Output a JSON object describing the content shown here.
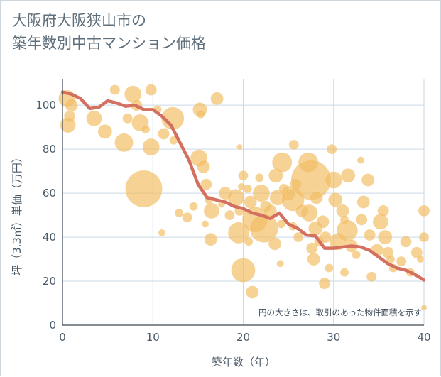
{
  "title_line1": "大阪府大阪狭山市の",
  "title_line2": "築年数別中古マンション価格",
  "chart_data": {
    "type": "scatter",
    "xlabel": "築年数（年）",
    "ylabel": "坪（3.3㎡）単価（万円）",
    "xlim": [
      0,
      40
    ],
    "ylim": [
      0,
      112
    ],
    "xticks": [
      0,
      10,
      20,
      30,
      40
    ],
    "yticks": [
      0,
      20,
      40,
      60,
      80,
      100
    ],
    "grid": true,
    "note": "円の大きさは、取引のあった物件面積を示す",
    "colors": {
      "bubble": "#f2bd63",
      "line": "#d4705f",
      "grid": "#c9d9e6",
      "axis": "#3f4a55"
    },
    "bubbles": [
      {
        "x": 0.5,
        "y": 103,
        "s": 12
      },
      {
        "x": 1,
        "y": 100,
        "s": 9
      },
      {
        "x": 0.8,
        "y": 95,
        "s": 8
      },
      {
        "x": 0.6,
        "y": 91,
        "s": 11
      },
      {
        "x": 3.5,
        "y": 94,
        "s": 11
      },
      {
        "x": 4.7,
        "y": 88,
        "s": 10
      },
      {
        "x": 5.8,
        "y": 107,
        "s": 7
      },
      {
        "x": 7.2,
        "y": 94,
        "s": 7
      },
      {
        "x": 6.8,
        "y": 83,
        "s": 13
      },
      {
        "x": 7.8,
        "y": 105,
        "s": 12
      },
      {
        "x": 8.2,
        "y": 100,
        "s": 8
      },
      {
        "x": 8.6,
        "y": 92,
        "s": 12
      },
      {
        "x": 9.2,
        "y": 89,
        "s": 6
      },
      {
        "x": 9.8,
        "y": 107,
        "s": 8
      },
      {
        "x": 9.8,
        "y": 81,
        "s": 12
      },
      {
        "x": 9,
        "y": 62,
        "s": 26
      },
      {
        "x": 10.5,
        "y": 98,
        "s": 6
      },
      {
        "x": 11.2,
        "y": 87,
        "s": 8
      },
      {
        "x": 12.2,
        "y": 94,
        "s": 16
      },
      {
        "x": 12.3,
        "y": 84,
        "s": 6
      },
      {
        "x": 11,
        "y": 42,
        "s": 5
      },
      {
        "x": 12.9,
        "y": 51,
        "s": 6
      },
      {
        "x": 13.8,
        "y": 49,
        "s": 7
      },
      {
        "x": 14.5,
        "y": 54,
        "s": 6
      },
      {
        "x": 15.2,
        "y": 98,
        "s": 10
      },
      {
        "x": 15.3,
        "y": 96,
        "s": 6
      },
      {
        "x": 17.1,
        "y": 103,
        "s": 9
      },
      {
        "x": 15.1,
        "y": 76,
        "s": 12
      },
      {
        "x": 15.6,
        "y": 72,
        "s": 9
      },
      {
        "x": 15.9,
        "y": 64,
        "s": 8
      },
      {
        "x": 16.2,
        "y": 57,
        "s": 6
      },
      {
        "x": 16.5,
        "y": 52,
        "s": 11
      },
      {
        "x": 15.8,
        "y": 46,
        "s": 5
      },
      {
        "x": 16.4,
        "y": 39,
        "s": 9
      },
      {
        "x": 17.6,
        "y": 55,
        "s": 5
      },
      {
        "x": 18,
        "y": 60,
        "s": 9
      },
      {
        "x": 18.5,
        "y": 50,
        "s": 7
      },
      {
        "x": 19.2,
        "y": 58,
        "s": 12
      },
      {
        "x": 19.6,
        "y": 81,
        "s": 4
      },
      {
        "x": 19.8,
        "y": 63,
        "s": 5
      },
      {
        "x": 19.6,
        "y": 52,
        "s": 7
      },
      {
        "x": 19.5,
        "y": 42,
        "s": 15
      },
      {
        "x": 20,
        "y": 68,
        "s": 7
      },
      {
        "x": 20.5,
        "y": 62,
        "s": 6
      },
      {
        "x": 20.8,
        "y": 56,
        "s": 9
      },
      {
        "x": 21.3,
        "y": 48,
        "s": 18
      },
      {
        "x": 20.6,
        "y": 38,
        "s": 6
      },
      {
        "x": 20,
        "y": 25,
        "s": 17
      },
      {
        "x": 21,
        "y": 15,
        "s": 9
      },
      {
        "x": 21.8,
        "y": 67,
        "s": 6
      },
      {
        "x": 22,
        "y": 60,
        "s": 12
      },
      {
        "x": 22.5,
        "y": 54,
        "s": 8
      },
      {
        "x": 22.3,
        "y": 44,
        "s": 20
      },
      {
        "x": 23,
        "y": 52,
        "s": 9
      },
      {
        "x": 23.6,
        "y": 68,
        "s": 10
      },
      {
        "x": 23.8,
        "y": 58,
        "s": 11
      },
      {
        "x": 23.5,
        "y": 37,
        "s": 9
      },
      {
        "x": 24.1,
        "y": 28,
        "s": 5
      },
      {
        "x": 24.2,
        "y": 46,
        "s": 6
      },
      {
        "x": 24.5,
        "y": 62,
        "s": 7
      },
      {
        "x": 24.3,
        "y": 74,
        "s": 14
      },
      {
        "x": 25,
        "y": 60,
        "s": 10
      },
      {
        "x": 25.5,
        "y": 57,
        "s": 16
      },
      {
        "x": 25.8,
        "y": 64,
        "s": 8
      },
      {
        "x": 25.6,
        "y": 82,
        "s": 7
      },
      {
        "x": 25.5,
        "y": 45,
        "s": 6
      },
      {
        "x": 26.1,
        "y": 40,
        "s": 7
      },
      {
        "x": 26.5,
        "y": 52,
        "s": 9
      },
      {
        "x": 27.2,
        "y": 74,
        "s": 14
      },
      {
        "x": 27.5,
        "y": 66,
        "s": 28
      },
      {
        "x": 27.3,
        "y": 51,
        "s": 12
      },
      {
        "x": 27.6,
        "y": 35,
        "s": 8
      },
      {
        "x": 27.8,
        "y": 30,
        "s": 9
      },
      {
        "x": 28,
        "y": 44,
        "s": 10
      },
      {
        "x": 28.1,
        "y": 58,
        "s": 9
      },
      {
        "x": 28.4,
        "y": 38,
        "s": 7
      },
      {
        "x": 28.8,
        "y": 47,
        "s": 9
      },
      {
        "x": 29.1,
        "y": 40,
        "s": 8
      },
      {
        "x": 29,
        "y": 19,
        "s": 8
      },
      {
        "x": 29.5,
        "y": 26,
        "s": 6
      },
      {
        "x": 29.8,
        "y": 80,
        "s": 7
      },
      {
        "x": 30,
        "y": 66,
        "s": 12
      },
      {
        "x": 30.2,
        "y": 57,
        "s": 10
      },
      {
        "x": 30.5,
        "y": 38,
        "s": 12
      },
      {
        "x": 31,
        "y": 52,
        "s": 9
      },
      {
        "x": 31.2,
        "y": 48,
        "s": 6
      },
      {
        "x": 31.5,
        "y": 43,
        "s": 15
      },
      {
        "x": 31.6,
        "y": 68,
        "s": 10
      },
      {
        "x": 31.2,
        "y": 24,
        "s": 6
      },
      {
        "x": 32,
        "y": 36,
        "s": 9
      },
      {
        "x": 32.5,
        "y": 32,
        "s": 6
      },
      {
        "x": 33.1,
        "y": 48,
        "s": 8
      },
      {
        "x": 33,
        "y": 75,
        "s": 5
      },
      {
        "x": 33.3,
        "y": 56,
        "s": 9
      },
      {
        "x": 33.8,
        "y": 66,
        "s": 9
      },
      {
        "x": 34,
        "y": 41,
        "s": 8
      },
      {
        "x": 34.2,
        "y": 22,
        "s": 7
      },
      {
        "x": 34.8,
        "y": 34,
        "s": 9
      },
      {
        "x": 35.2,
        "y": 47,
        "s": 11
      },
      {
        "x": 35.5,
        "y": 52,
        "s": 8
      },
      {
        "x": 35.7,
        "y": 40,
        "s": 10
      },
      {
        "x": 36,
        "y": 33,
        "s": 8
      },
      {
        "x": 36.3,
        "y": 30,
        "s": 6
      },
      {
        "x": 36.6,
        "y": 26,
        "s": 6
      },
      {
        "x": 37.5,
        "y": 29,
        "s": 7
      },
      {
        "x": 38,
        "y": 38,
        "s": 8
      },
      {
        "x": 38.5,
        "y": 24,
        "s": 6
      },
      {
        "x": 39.2,
        "y": 33,
        "s": 8
      },
      {
        "x": 39.6,
        "y": 30,
        "s": 5
      },
      {
        "x": 40,
        "y": 52,
        "s": 8
      },
      {
        "x": 40,
        "y": 40,
        "s": 7
      },
      {
        "x": 40,
        "y": 8,
        "s": 4
      }
    ],
    "trend": {
      "x": [
        0,
        1,
        2,
        3,
        4,
        5,
        6,
        7,
        8,
        9,
        10,
        11,
        12,
        13,
        14,
        15,
        16,
        17,
        18,
        19,
        20,
        21,
        22,
        23,
        24,
        25,
        26,
        27,
        28,
        29,
        30,
        31,
        32,
        33,
        34,
        35,
        36,
        37,
        38,
        39,
        40
      ],
      "y": [
        106,
        105,
        103,
        98.5,
        99,
        102,
        101,
        99.5,
        100,
        98,
        98,
        95,
        91,
        83,
        75,
        64,
        58,
        57,
        56,
        54,
        53,
        51,
        50,
        48.5,
        51,
        46,
        44,
        41,
        40.5,
        35,
        35,
        35.5,
        36,
        35.5,
        34,
        31,
        28,
        26,
        25,
        23,
        20.5
      ]
    }
  }
}
